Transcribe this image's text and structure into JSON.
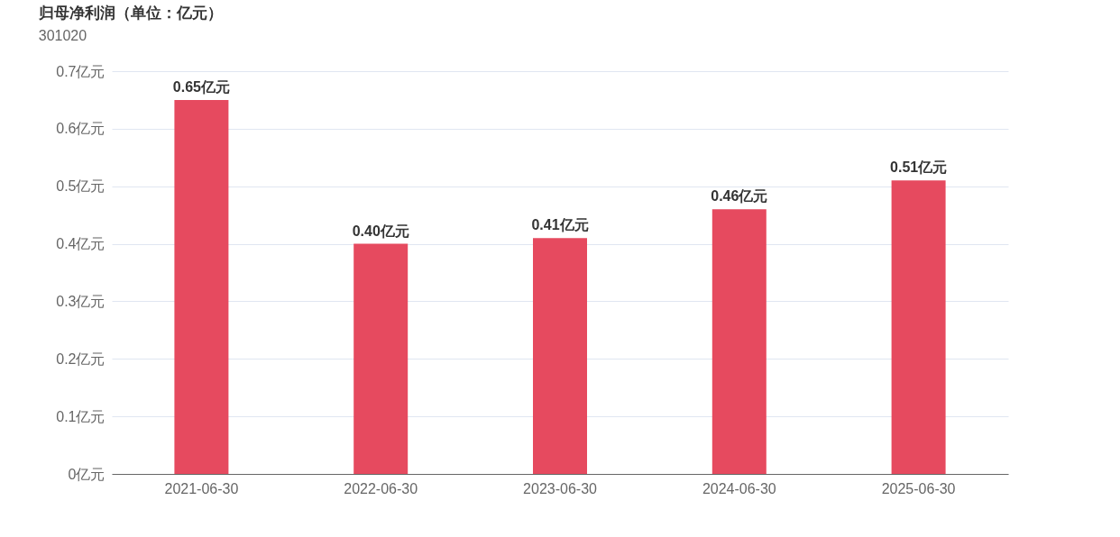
{
  "chart_data": {
    "type": "bar",
    "title": "归母净利润（单位：亿元）",
    "subtitle": "301020",
    "categories": [
      "2021-06-30",
      "2022-06-30",
      "2023-06-30",
      "2024-06-30",
      "2025-06-30"
    ],
    "values": [
      0.65,
      0.4,
      0.41,
      0.46,
      0.51
    ],
    "value_labels": [
      "0.65亿元",
      "0.40亿元",
      "0.41亿元",
      "0.46亿元",
      "0.51亿元"
    ],
    "color": "#e64a5f",
    "ylim": [
      0,
      0.7
    ],
    "yticks": [
      {
        "value": 0,
        "label": "0亿元"
      },
      {
        "value": 0.1,
        "label": "0.1亿元"
      },
      {
        "value": 0.2,
        "label": "0.2亿元"
      },
      {
        "value": 0.3,
        "label": "0.3亿元"
      },
      {
        "value": 0.4,
        "label": "0.4亿元"
      },
      {
        "value": 0.5,
        "label": "0.5亿元"
      },
      {
        "value": 0.6,
        "label": "0.6亿元"
      },
      {
        "value": 0.7,
        "label": "0.7亿元"
      }
    ],
    "grid": "y"
  }
}
